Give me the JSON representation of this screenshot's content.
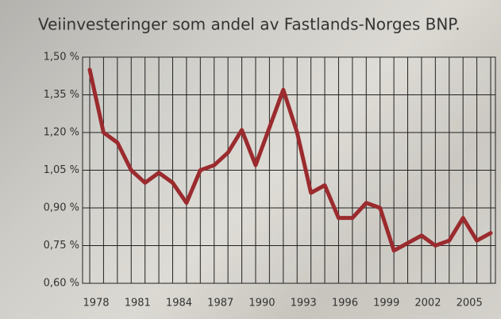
{
  "chart_data": {
    "type": "line",
    "title": "Veiinvesteringer som andel av Fastlands-Norges BNP.",
    "x": [
      1978,
      1979,
      1980,
      1981,
      1982,
      1983,
      1984,
      1985,
      1986,
      1987,
      1988,
      1989,
      1990,
      1991,
      1992,
      1993,
      1994,
      1995,
      1996,
      1997,
      1998,
      1999,
      2000,
      2001,
      2002,
      2003,
      2004,
      2005,
      2006,
      2007
    ],
    "series": [
      {
        "color": "#9b2b2e",
        "values": [
          1.45,
          1.2,
          1.16,
          1.05,
          1.0,
          1.04,
          1.0,
          0.92,
          1.05,
          1.07,
          1.12,
          1.21,
          1.07,
          1.22,
          1.37,
          1.2,
          0.96,
          0.99,
          0.86,
          0.86,
          0.92,
          0.9,
          0.73,
          0.76,
          0.79,
          0.75,
          0.77,
          0.86,
          0.77,
          0.8
        ]
      }
    ],
    "xlim": [
      1978,
      2007
    ],
    "xticks": [
      1978,
      1981,
      1984,
      1987,
      1990,
      1993,
      1996,
      1999,
      2002,
      2005
    ],
    "ylim": [
      0.6,
      1.5
    ],
    "yticks": [
      {
        "value": 0.6,
        "label": "0,60 %"
      },
      {
        "value": 0.75,
        "label": "0,75 %"
      },
      {
        "value": 0.9,
        "label": "0,90 %"
      },
      {
        "value": 1.05,
        "label": "1,05 %"
      },
      {
        "value": 1.2,
        "label": "1,20 %"
      },
      {
        "value": 1.35,
        "label": "1,35 %"
      },
      {
        "value": 1.5,
        "label": "1,50 %"
      }
    ],
    "grid": true
  }
}
